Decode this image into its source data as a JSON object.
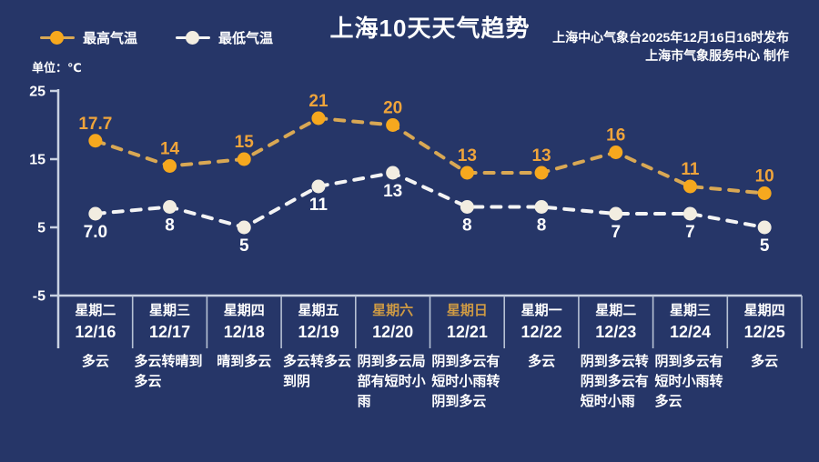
{
  "header": {
    "title": "上海10天天气趋势",
    "publisher_line1": "上海中心气象台2025年12月16日16时发布",
    "publisher_line2": "上海市气象服务中心 制作"
  },
  "legend": {
    "high_label": "最高气温",
    "low_label": "最低气温"
  },
  "unit_label": "单位：℃",
  "colors": {
    "background": "#263668",
    "axis": "#C9D2E2",
    "divider": "#B6C1D4",
    "text": "#FFFFFF",
    "weekend_text": "#CE9A44"
  },
  "chart_data": {
    "type": "line",
    "title": "上海10天天气趋势",
    "ylabel": "单位：℃",
    "ylim": [
      -5,
      25
    ],
    "yticks": [
      25,
      15,
      5,
      -5
    ],
    "grid": false,
    "legend_position": "top-left",
    "categories": [
      {
        "week": "星期二",
        "date": "12/16",
        "weather": "多云",
        "weekend": false
      },
      {
        "week": "星期三",
        "date": "12/17",
        "weather": "多云转晴到多云",
        "weekend": false
      },
      {
        "week": "星期四",
        "date": "12/18",
        "weather": "晴到多云",
        "weekend": false
      },
      {
        "week": "星期五",
        "date": "12/19",
        "weather": "多云转多云到阴",
        "weekend": false
      },
      {
        "week": "星期六",
        "date": "12/20",
        "weather": "阴到多云局部有短时小雨",
        "weekend": true
      },
      {
        "week": "星期日",
        "date": "12/21",
        "weather": "阴到多云有短时小雨转阴到多云",
        "weekend": true
      },
      {
        "week": "星期一",
        "date": "12/22",
        "weather": "多云",
        "weekend": false
      },
      {
        "week": "星期二",
        "date": "12/23",
        "weather": "阴到多云转阴到多云有短时小雨",
        "weekend": false
      },
      {
        "week": "星期三",
        "date": "12/24",
        "weather": "阴到多云有短时小雨转多云",
        "weekend": false
      },
      {
        "week": "星期四",
        "date": "12/25",
        "weather": "多云",
        "weekend": false
      }
    ],
    "series": [
      {
        "name": "最高气温",
        "values": [
          17.7,
          14,
          15,
          21,
          20,
          13,
          13,
          16,
          11,
          10
        ],
        "labels": [
          "17.7",
          "14",
          "15",
          "21",
          "20",
          "13",
          "13",
          "16",
          "11",
          "10"
        ],
        "dot_color": "#F6A81E",
        "line_color": "#D9A854",
        "label_color": "#EFA43B",
        "label_position": "above"
      },
      {
        "name": "最低气温",
        "values": [
          7.0,
          8,
          5,
          11,
          13,
          8,
          8,
          7,
          7,
          5
        ],
        "labels": [
          "7.0",
          "8",
          "5",
          "11",
          "13",
          "8",
          "8",
          "7",
          "7",
          "5"
        ],
        "dot_color": "#F2EDE1",
        "line_color": "#F4F4F4",
        "label_color": "#FFFFFF",
        "label_position": "below"
      }
    ]
  }
}
